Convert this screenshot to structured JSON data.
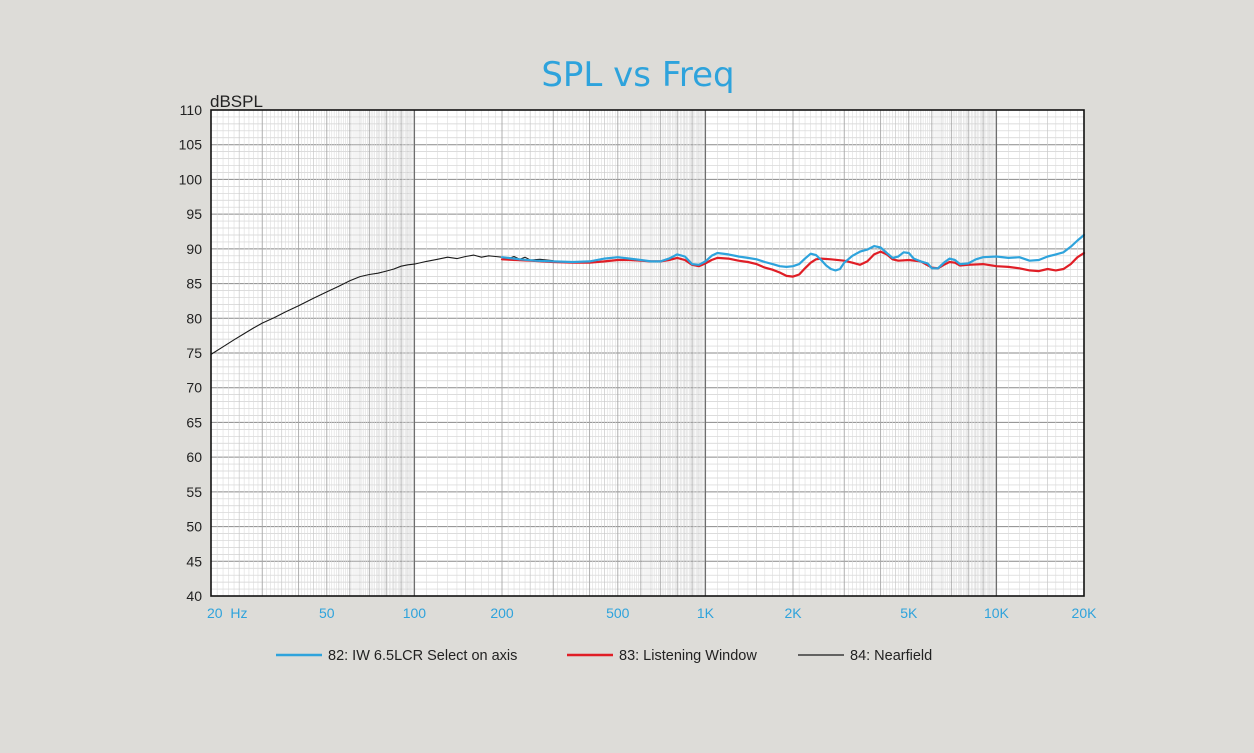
{
  "chart_data": {
    "type": "line",
    "title": "SPL vs Freq",
    "ylabel": "dBSPL",
    "x_scale": "log",
    "xlim": [
      20,
      20000
    ],
    "ylim": [
      40,
      110
    ],
    "yticks": [
      "40",
      "45",
      "50",
      "55",
      "60",
      "65",
      "70",
      "75",
      "80",
      "85",
      "90",
      "95",
      "100",
      "105",
      "110"
    ],
    "xticks": [
      {
        "value": 20,
        "label": "20  Hz"
      },
      {
        "value": 50,
        "label": "50"
      },
      {
        "value": 100,
        "label": "100"
      },
      {
        "value": 200,
        "label": "200"
      },
      {
        "value": 500,
        "label": "500"
      },
      {
        "value": 1000,
        "label": "1K"
      },
      {
        "value": 2000,
        "label": "2K"
      },
      {
        "value": 5000,
        "label": "5K"
      },
      {
        "value": 10000,
        "label": "10K"
      },
      {
        "value": 20000,
        "label": "20K"
      }
    ],
    "grid": true,
    "legend_position": "bottom",
    "series": [
      {
        "name": "82: IW 6.5LCR Select on axis",
        "color": "#2ea3dc",
        "points": [
          [
            200,
            88.8
          ],
          [
            230,
            88.5
          ],
          [
            260,
            88.3
          ],
          [
            300,
            88.2
          ],
          [
            350,
            88.1
          ],
          [
            400,
            88.2
          ],
          [
            450,
            88.6
          ],
          [
            500,
            88.8
          ],
          [
            550,
            88.6
          ],
          [
            600,
            88.4
          ],
          [
            650,
            88.2
          ],
          [
            700,
            88.2
          ],
          [
            750,
            88.6
          ],
          [
            800,
            89.2
          ],
          [
            850,
            88.9
          ],
          [
            900,
            87.8
          ],
          [
            950,
            87.7
          ],
          [
            1000,
            88.2
          ],
          [
            1050,
            89.0
          ],
          [
            1100,
            89.4
          ],
          [
            1200,
            89.2
          ],
          [
            1300,
            88.9
          ],
          [
            1400,
            88.7
          ],
          [
            1500,
            88.5
          ],
          [
            1600,
            88.1
          ],
          [
            1700,
            87.8
          ],
          [
            1800,
            87.5
          ],
          [
            1900,
            87.4
          ],
          [
            2000,
            87.5
          ],
          [
            2100,
            87.8
          ],
          [
            2200,
            88.6
          ],
          [
            2300,
            89.3
          ],
          [
            2400,
            89.1
          ],
          [
            2500,
            88.4
          ],
          [
            2600,
            87.6
          ],
          [
            2700,
            87.1
          ],
          [
            2800,
            86.9
          ],
          [
            2900,
            87.1
          ],
          [
            3000,
            88.0
          ],
          [
            3200,
            89.0
          ],
          [
            3400,
            89.6
          ],
          [
            3600,
            89.9
          ],
          [
            3800,
            90.4
          ],
          [
            4000,
            90.2
          ],
          [
            4200,
            89.4
          ],
          [
            4400,
            88.7
          ],
          [
            4600,
            88.9
          ],
          [
            4800,
            89.5
          ],
          [
            5000,
            89.4
          ],
          [
            5200,
            88.6
          ],
          [
            5500,
            88.2
          ],
          [
            5800,
            87.9
          ],
          [
            6000,
            87.2
          ],
          [
            6300,
            87.2
          ],
          [
            6600,
            88.0
          ],
          [
            6900,
            88.6
          ],
          [
            7200,
            88.4
          ],
          [
            7500,
            87.8
          ],
          [
            8000,
            87.9
          ],
          [
            8500,
            88.5
          ],
          [
            9000,
            88.8
          ],
          [
            10000,
            88.9
          ],
          [
            11000,
            88.7
          ],
          [
            12000,
            88.8
          ],
          [
            13000,
            88.3
          ],
          [
            14000,
            88.4
          ],
          [
            15000,
            88.9
          ],
          [
            16000,
            89.2
          ],
          [
            17000,
            89.5
          ],
          [
            18000,
            90.3
          ],
          [
            19000,
            91.2
          ],
          [
            20000,
            92.0
          ]
        ]
      },
      {
        "name": "83: Listening Window",
        "color": "#e01e26",
        "points": [
          [
            200,
            88.5
          ],
          [
            250,
            88.3
          ],
          [
            300,
            88.1
          ],
          [
            350,
            88.0
          ],
          [
            400,
            88.0
          ],
          [
            450,
            88.2
          ],
          [
            500,
            88.4
          ],
          [
            550,
            88.4
          ],
          [
            600,
            88.3
          ],
          [
            650,
            88.2
          ],
          [
            700,
            88.2
          ],
          [
            750,
            88.4
          ],
          [
            800,
            88.7
          ],
          [
            850,
            88.4
          ],
          [
            900,
            87.7
          ],
          [
            950,
            87.5
          ],
          [
            1000,
            87.9
          ],
          [
            1050,
            88.4
          ],
          [
            1100,
            88.7
          ],
          [
            1200,
            88.6
          ],
          [
            1300,
            88.3
          ],
          [
            1400,
            88.1
          ],
          [
            1500,
            87.8
          ],
          [
            1600,
            87.3
          ],
          [
            1700,
            87.0
          ],
          [
            1800,
            86.6
          ],
          [
            1900,
            86.1
          ],
          [
            2000,
            86.0
          ],
          [
            2100,
            86.3
          ],
          [
            2200,
            87.2
          ],
          [
            2300,
            88.0
          ],
          [
            2400,
            88.5
          ],
          [
            2500,
            88.6
          ],
          [
            2700,
            88.5
          ],
          [
            3000,
            88.3
          ],
          [
            3200,
            88.0
          ],
          [
            3400,
            87.7
          ],
          [
            3600,
            88.2
          ],
          [
            3800,
            89.2
          ],
          [
            4000,
            89.6
          ],
          [
            4200,
            89.2
          ],
          [
            4400,
            88.5
          ],
          [
            4600,
            88.3
          ],
          [
            5000,
            88.4
          ],
          [
            5500,
            88.2
          ],
          [
            6000,
            87.3
          ],
          [
            6300,
            87.2
          ],
          [
            6600,
            87.7
          ],
          [
            6900,
            88.1
          ],
          [
            7200,
            88.0
          ],
          [
            7500,
            87.6
          ],
          [
            8000,
            87.7
          ],
          [
            9000,
            87.8
          ],
          [
            10000,
            87.5
          ],
          [
            11000,
            87.4
          ],
          [
            12000,
            87.2
          ],
          [
            13000,
            86.9
          ],
          [
            14000,
            86.8
          ],
          [
            15000,
            87.1
          ],
          [
            16000,
            86.9
          ],
          [
            17000,
            87.1
          ],
          [
            18000,
            87.8
          ],
          [
            19000,
            88.8
          ],
          [
            20000,
            89.4
          ]
        ]
      },
      {
        "name": "84: Nearfield",
        "color": "#1a1a1a",
        "points": [
          [
            20,
            74.8
          ],
          [
            22,
            75.9
          ],
          [
            24,
            76.9
          ],
          [
            26,
            77.8
          ],
          [
            28,
            78.6
          ],
          [
            30,
            79.3
          ],
          [
            33,
            80.1
          ],
          [
            36,
            80.9
          ],
          [
            40,
            81.8
          ],
          [
            45,
            82.9
          ],
          [
            50,
            83.8
          ],
          [
            55,
            84.6
          ],
          [
            60,
            85.4
          ],
          [
            65,
            86.0
          ],
          [
            70,
            86.3
          ],
          [
            75,
            86.5
          ],
          [
            80,
            86.8
          ],
          [
            85,
            87.1
          ],
          [
            90,
            87.5
          ],
          [
            95,
            87.7
          ],
          [
            100,
            87.8
          ],
          [
            110,
            88.2
          ],
          [
            120,
            88.5
          ],
          [
            130,
            88.8
          ],
          [
            140,
            88.6
          ],
          [
            150,
            88.9
          ],
          [
            160,
            89.1
          ],
          [
            170,
            88.8
          ],
          [
            180,
            89.0
          ],
          [
            190,
            88.9
          ],
          [
            200,
            88.8
          ],
          [
            210,
            88.6
          ],
          [
            220,
            88.9
          ],
          [
            230,
            88.5
          ],
          [
            240,
            88.8
          ],
          [
            250,
            88.4
          ],
          [
            270,
            88.5
          ],
          [
            300,
            88.3
          ]
        ]
      }
    ]
  }
}
